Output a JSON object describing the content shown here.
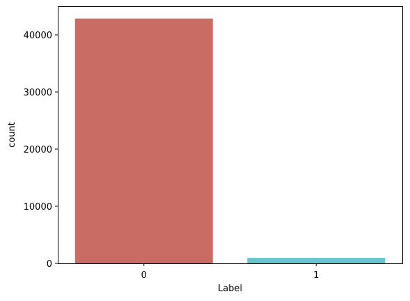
{
  "chart_data": {
    "type": "bar",
    "categories": [
      "0",
      "1"
    ],
    "values": [
      42850,
      970
    ],
    "colors": [
      "#c96d64",
      "#66c6cc"
    ],
    "xlabel": "Label",
    "ylabel": "count",
    "ylim": [
      0,
      45000
    ],
    "yticks": [
      {
        "value": 0,
        "label": "0"
      },
      {
        "value": 10000,
        "label": "10000"
      },
      {
        "value": 20000,
        "label": "20000"
      },
      {
        "value": 30000,
        "label": "30000"
      },
      {
        "value": 40000,
        "label": "40000"
      }
    ],
    "grid": false,
    "legend": "none"
  }
}
